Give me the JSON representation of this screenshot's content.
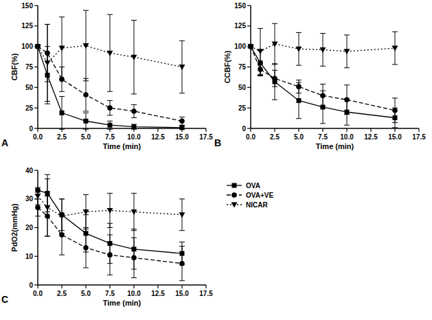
{
  "chart_data": [
    {
      "type": "line",
      "title": "A",
      "x_label": "Time (min)",
      "y_label": "CBF(%)",
      "x": [
        0,
        1,
        2.5,
        5,
        7.5,
        10,
        15
      ],
      "xlim": [
        0,
        17.5
      ],
      "xticks": [
        {
          "value": 0,
          "label": "0.0"
        },
        {
          "value": 2.5,
          "label": "2.5"
        },
        {
          "value": 5,
          "label": "5.0"
        },
        {
          "value": 7.5,
          "label": "7.5"
        },
        {
          "value": 10,
          "label": "10.0"
        },
        {
          "value": 12.5,
          "label": "12.5"
        },
        {
          "value": 15,
          "label": "15.0"
        },
        {
          "value": 17.5,
          "label": "17.5"
        }
      ],
      "ylim": [
        0,
        150
      ],
      "yticks": [
        0,
        25,
        50,
        75,
        100,
        125,
        150
      ],
      "series": [
        {
          "name": "OVA",
          "color": "#000000",
          "marker": "square",
          "line_style": "solid",
          "values": [
            100,
            65,
            19,
            9,
            4,
            2,
            1
          ],
          "errors": [
            0,
            35,
            20,
            10,
            5,
            3,
            2
          ]
        },
        {
          "name": "OVA+VE",
          "color": "#000000",
          "marker": "circle",
          "line_style": "dashed",
          "values": [
            100,
            92,
            60,
            41,
            25,
            21,
            9
          ],
          "errors": [
            0,
            35,
            15,
            20,
            9,
            8,
            5
          ]
        },
        {
          "name": "NICAR",
          "color": "#000000",
          "marker": "triangle-down",
          "line_style": "dotted",
          "values": [
            100,
            80,
            98,
            101,
            92,
            87,
            75
          ],
          "errors": [
            0,
            47,
            38,
            43,
            47,
            45,
            32
          ]
        }
      ]
    },
    {
      "type": "line",
      "title": "B",
      "x_label": "Time (min)",
      "y_label": "CCBF(%)",
      "x": [
        0,
        1,
        2.5,
        5,
        7.5,
        10,
        15
      ],
      "xlim": [
        0,
        17.5
      ],
      "xticks": [
        {
          "value": 0,
          "label": "0.0"
        },
        {
          "value": 2.5,
          "label": "2.5"
        },
        {
          "value": 5,
          "label": "5.0"
        },
        {
          "value": 7.5,
          "label": "7.5"
        },
        {
          "value": 10,
          "label": "10.0"
        },
        {
          "value": 12.5,
          "label": "12.5"
        },
        {
          "value": 15,
          "label": "15.0"
        },
        {
          "value": 17.5,
          "label": "17.5"
        }
      ],
      "ylim": [
        0,
        150
      ],
      "yticks": [
        0,
        25,
        50,
        75,
        100,
        125,
        150
      ],
      "series": [
        {
          "name": "OVA",
          "color": "#000000",
          "marker": "square",
          "line_style": "solid",
          "values": [
            100,
            80,
            57,
            34,
            26,
            20,
            13
          ],
          "errors": [
            0,
            15,
            22,
            22,
            20,
            16,
            12
          ]
        },
        {
          "name": "OVA+VE",
          "color": "#000000",
          "marker": "circle",
          "line_style": "dashed",
          "values": [
            100,
            72,
            61,
            51,
            40,
            35,
            22
          ],
          "errors": [
            0,
            8,
            10,
            8,
            14,
            18,
            15
          ]
        },
        {
          "name": "NICAR",
          "color": "#000000",
          "marker": "triangle-down",
          "line_style": "dotted",
          "values": [
            100,
            94,
            103,
            97,
            96,
            94,
            98
          ],
          "errors": [
            0,
            28,
            25,
            20,
            20,
            20,
            20
          ]
        }
      ]
    },
    {
      "type": "line",
      "title": "C",
      "x_label": "Time (min)",
      "y_label": "PdO2(mmHg)",
      "x": [
        0,
        1,
        2.5,
        5,
        7.5,
        10,
        15
      ],
      "xlim": [
        0,
        17.5
      ],
      "xticks": [
        {
          "value": 0,
          "label": "0.0"
        },
        {
          "value": 2.5,
          "label": "2.5"
        },
        {
          "value": 5,
          "label": "5.0"
        },
        {
          "value": 7.5,
          "label": "7.5"
        },
        {
          "value": 10,
          "label": "10.0"
        },
        {
          "value": 12.5,
          "label": "12.5"
        },
        {
          "value": 15,
          "label": "15.0"
        },
        {
          "value": 17.5,
          "label": "17.5"
        }
      ],
      "ylim": [
        0,
        40
      ],
      "yticks": [
        0,
        10,
        20,
        30,
        40
      ],
      "legend": "right",
      "series": [
        {
          "name": "OVA",
          "color": "#000000",
          "marker": "square",
          "line_style": "solid",
          "values": [
            33,
            32,
            24.5,
            18,
            14.5,
            12.5,
            11
          ],
          "errors": [
            0,
            6.5,
            5.5,
            6.5,
            7,
            7,
            4
          ]
        },
        {
          "name": "OVA+VE",
          "color": "#000000",
          "marker": "circle",
          "line_style": "dashed",
          "values": [
            27,
            24,
            17.5,
            13,
            10.5,
            9.5,
            7.5
          ],
          "errors": [
            3,
            7,
            7,
            7,
            7,
            7,
            6
          ]
        },
        {
          "name": "NICAR",
          "color": "#000000",
          "marker": "triangle-down",
          "line_style": "dotted",
          "values": [
            31,
            27,
            24,
            25.5,
            26,
            25.5,
            24.5
          ],
          "errors": [
            3,
            10,
            6,
            6,
            6,
            6.5,
            5.5
          ]
        }
      ]
    }
  ]
}
